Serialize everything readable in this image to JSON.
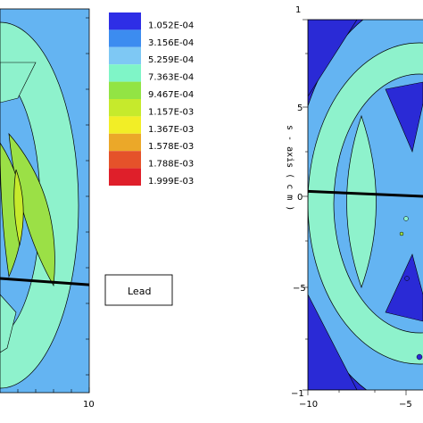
{
  "chart_data": [
    {
      "type": "heatmap",
      "panel": "left",
      "x_tick_labels": [
        "10"
      ],
      "y_tick_labels": [],
      "legend": {
        "placement": "top-right of left panel",
        "levels": [
          "1.052E-04",
          "3.156E-04",
          "5.259E-04",
          "7.363E-04",
          "9.467E-04",
          "1.157E-03",
          "1.367E-03",
          "1.578E-03",
          "1.788E-03",
          "1.999E-03"
        ],
        "colors": [
          "#2e2ee6",
          "#3c8cf0",
          "#7ec8f4",
          "#7ff5c7",
          "#92e444",
          "#c6ea2c",
          "#f2ee26",
          "#eba829",
          "#e5522a",
          "#df1f2a"
        ]
      },
      "annotation": "Lead"
    },
    {
      "type": "heatmap",
      "panel": "right",
      "x_tick_labels": [
        "−10",
        "−5"
      ],
      "y_tick_labels": [
        "1",
        "5",
        "0",
        "−5",
        "−1"
      ],
      "ylabel": "s - axis ( c m )"
    }
  ],
  "colors": {
    "background_outer": "#64b4f2",
    "ring": "#8ef2cc",
    "inner_blue": "#64b4f2",
    "lens_green": "#9be046",
    "dark_blue": "#2a2ad6"
  }
}
